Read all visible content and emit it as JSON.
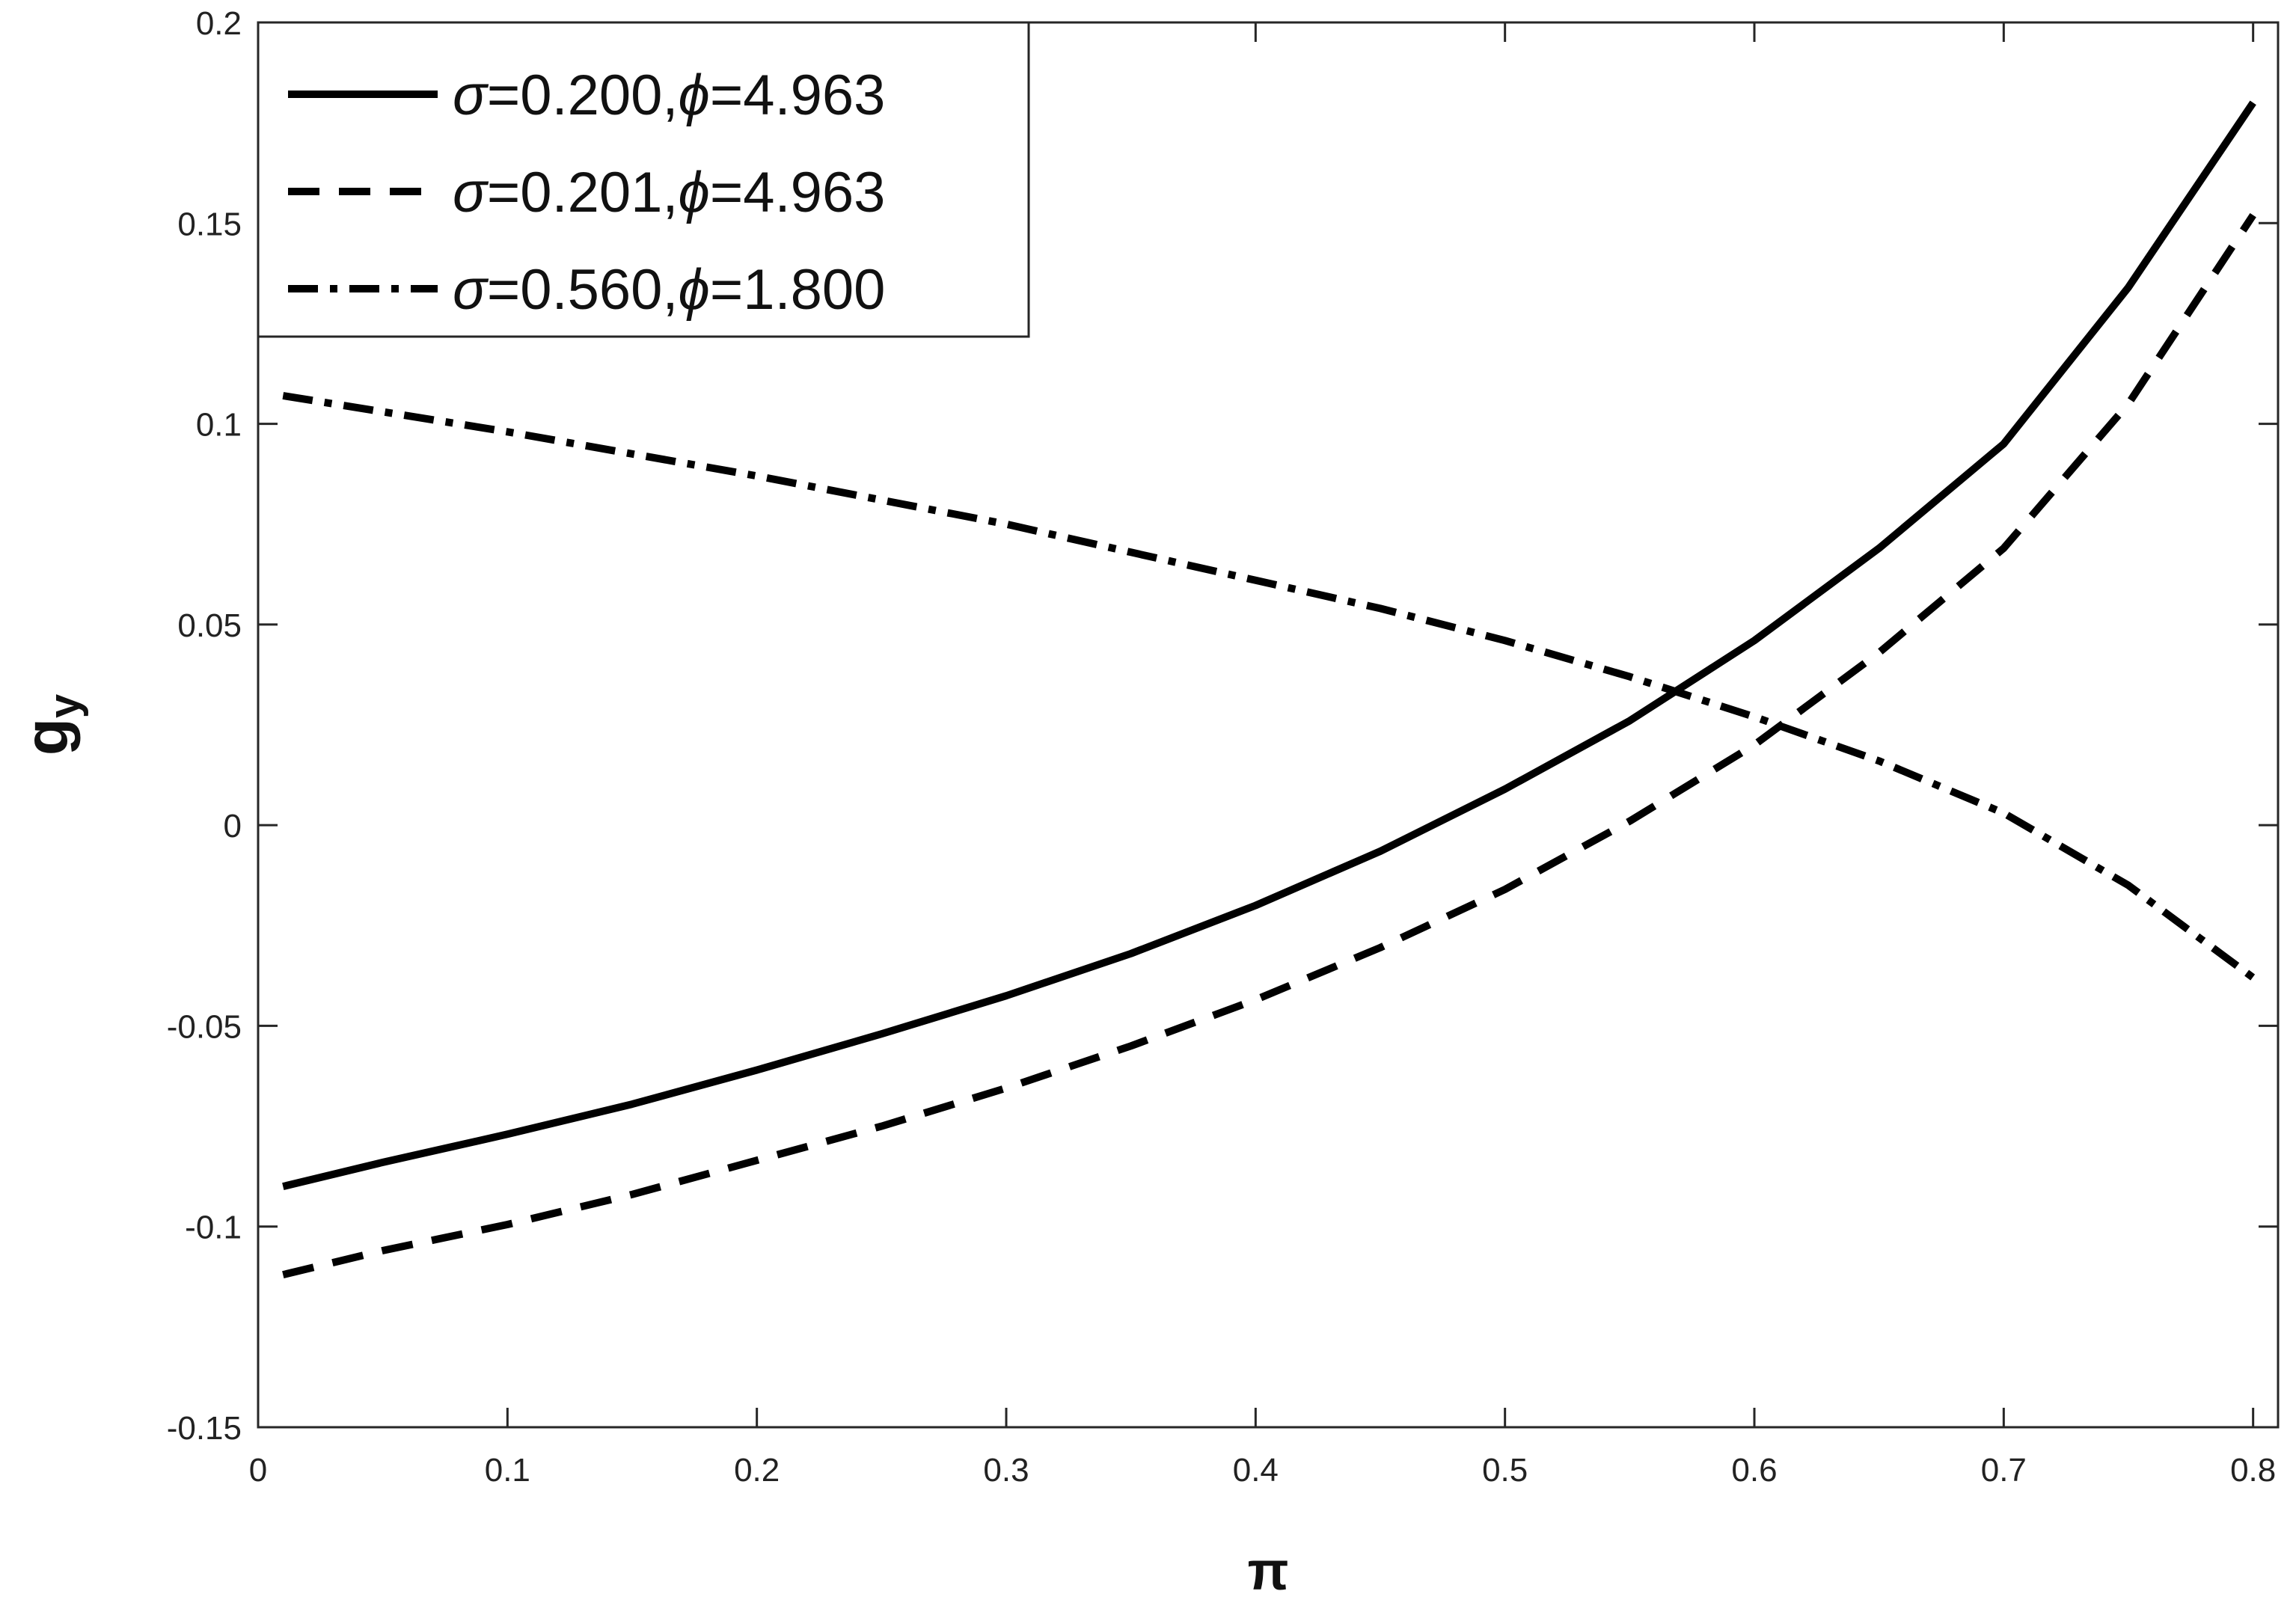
{
  "chart_data": {
    "type": "line",
    "title": "",
    "xlabel": "π",
    "ylabel": "g",
    "ylabel_subscript": "y",
    "xlim": [
      0,
      0.81
    ],
    "ylim": [
      -0.15,
      0.2
    ],
    "grid": false,
    "legend_position": "top-left",
    "xticks": [
      0,
      0.1,
      0.2,
      0.3,
      0.4,
      0.5,
      0.6,
      0.7,
      0.8
    ],
    "xtick_labels": [
      "0",
      "0.1",
      "0.2",
      "0.3",
      "0.4",
      "0.5",
      "0.6",
      "0.7",
      "0.8"
    ],
    "yticks": [
      -0.15,
      -0.1,
      -0.05,
      0,
      0.05,
      0.1,
      0.15,
      0.2
    ],
    "ytick_labels": [
      "-0.15",
      "-0.1",
      "-0.05",
      "0",
      "0.05",
      "0.1",
      "0.15",
      "0.2"
    ],
    "series": [
      {
        "name": "σ=0.200,ϕ=4.963",
        "sigma": "0.200",
        "phi": "4.963",
        "style": "solid",
        "color": "#000000",
        "x": [
          0.01,
          0.05,
          0.1,
          0.15,
          0.2,
          0.25,
          0.3,
          0.35,
          0.4,
          0.45,
          0.5,
          0.55,
          0.6,
          0.65,
          0.7,
          0.75,
          0.8
        ],
        "y": [
          -0.09,
          -0.084,
          -0.077,
          -0.0695,
          -0.061,
          -0.052,
          -0.0425,
          -0.032,
          -0.02,
          -0.0065,
          0.009,
          0.026,
          0.046,
          0.069,
          0.095,
          0.134,
          0.18
        ]
      },
      {
        "name": "σ=0.201,ϕ=4.963",
        "sigma": "0.201",
        "phi": "4.963",
        "style": "dashed",
        "color": "#000000",
        "x": [
          0.01,
          0.05,
          0.1,
          0.15,
          0.2,
          0.25,
          0.3,
          0.35,
          0.4,
          0.45,
          0.5,
          0.55,
          0.6,
          0.65,
          0.7,
          0.75,
          0.8
        ],
        "y": [
          -0.112,
          -0.106,
          -0.0995,
          -0.092,
          -0.0835,
          -0.075,
          -0.0655,
          -0.055,
          -0.0435,
          -0.0305,
          -0.016,
          0.001,
          0.02,
          0.043,
          0.069,
          0.105,
          0.152
        ]
      },
      {
        "name": "σ=0.560,ϕ=1.800",
        "sigma": "0.560",
        "phi": "1.800",
        "style": "dashdot",
        "color": "#000000",
        "x": [
          0.01,
          0.05,
          0.1,
          0.15,
          0.2,
          0.25,
          0.3,
          0.35,
          0.4,
          0.45,
          0.5,
          0.55,
          0.6,
          0.65,
          0.7,
          0.75,
          0.8
        ],
        "y": [
          0.107,
          0.103,
          0.098,
          0.0925,
          0.087,
          0.081,
          0.075,
          0.068,
          0.061,
          0.054,
          0.046,
          0.037,
          0.027,
          0.016,
          0.003,
          -0.015,
          -0.038
        ]
      }
    ]
  }
}
